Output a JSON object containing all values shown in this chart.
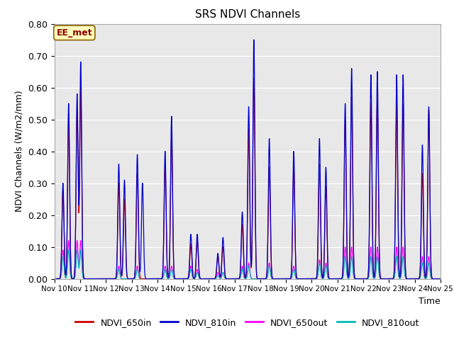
{
  "title": "SRS NDVI Channels",
  "ylabel": "NDVI Channels (W/m2/mm)",
  "xlabel": "Time",
  "ylim": [
    0.0,
    0.8
  ],
  "yticks": [
    0.0,
    0.1,
    0.2,
    0.3,
    0.4,
    0.5,
    0.6,
    0.7,
    0.8
  ],
  "annotation_text": "EE_met",
  "annotation_bg": "#FFFFBB",
  "annotation_border": "#8B6000",
  "annotation_text_color": "#8B0000",
  "colors": {
    "NDVI_650in": "#CC0000",
    "NDVI_810in": "#0000CC",
    "NDVI_650out": "#FF00FF",
    "NDVI_810out": "#00BBBB"
  },
  "x_tick_labels": [
    "Nov 10",
    "Nov 11",
    "Nov 12",
    "Nov 13",
    "Nov 14",
    "Nov 15",
    "Nov 16",
    "Nov 17",
    "Nov 18",
    "Nov 19",
    "Nov 20",
    "Nov 21",
    "Nov 22",
    "Nov 23",
    "Nov 24",
    "Nov 25"
  ],
  "background_color": "#E8E8E8",
  "grid_color": "#FFFFFF",
  "peak_data": {
    "NDVI_810in": {
      "times": [
        0.33,
        0.55,
        0.88,
        1.02,
        2.5,
        2.72,
        3.22,
        3.42,
        4.3,
        4.55,
        5.3,
        5.55,
        6.35,
        6.55,
        7.3,
        7.55,
        7.75,
        8.35,
        9.3,
        10.3,
        10.55,
        11.3,
        11.55,
        12.3,
        12.55,
        13.3,
        13.55,
        14.3,
        14.55
      ],
      "heights": [
        0.3,
        0.55,
        0.58,
        0.68,
        0.36,
        0.31,
        0.39,
        0.3,
        0.4,
        0.51,
        0.14,
        0.14,
        0.08,
        0.13,
        0.21,
        0.54,
        0.75,
        0.44,
        0.4,
        0.44,
        0.35,
        0.55,
        0.66,
        0.64,
        0.65,
        0.64,
        0.64,
        0.42,
        0.54
      ]
    },
    "NDVI_650in": {
      "times": [
        0.33,
        0.55,
        0.88,
        1.02,
        2.5,
        2.72,
        3.22,
        4.3,
        4.55,
        5.3,
        5.55,
        6.35,
        6.55,
        7.3,
        7.55,
        7.75,
        8.35,
        9.3,
        10.3,
        10.55,
        11.3,
        11.55,
        12.3,
        12.55,
        13.3,
        13.55,
        14.3,
        14.55
      ],
      "heights": [
        0.28,
        0.5,
        0.53,
        0.6,
        0.3,
        0.25,
        0.33,
        0.36,
        0.45,
        0.11,
        0.12,
        0.07,
        0.1,
        0.17,
        0.47,
        0.63,
        0.35,
        0.35,
        0.36,
        0.29,
        0.5,
        0.57,
        0.55,
        0.56,
        0.55,
        0.55,
        0.33,
        0.53
      ]
    },
    "NDVI_650out": {
      "times": [
        0.33,
        0.55,
        0.88,
        1.02,
        2.5,
        3.22,
        4.3,
        4.55,
        5.3,
        5.55,
        6.35,
        6.55,
        7.3,
        7.55,
        8.35,
        9.3,
        10.3,
        10.55,
        11.3,
        11.55,
        12.3,
        12.55,
        13.3,
        13.55,
        14.3,
        14.55
      ],
      "heights": [
        0.09,
        0.12,
        0.12,
        0.12,
        0.04,
        0.04,
        0.04,
        0.04,
        0.04,
        0.03,
        0.02,
        0.02,
        0.04,
        0.05,
        0.05,
        0.04,
        0.06,
        0.05,
        0.1,
        0.1,
        0.1,
        0.1,
        0.1,
        0.1,
        0.07,
        0.07
      ]
    },
    "NDVI_810out": {
      "times": [
        0.33,
        0.55,
        0.88,
        1.02,
        2.5,
        3.22,
        4.3,
        4.55,
        5.3,
        5.55,
        6.35,
        6.55,
        7.3,
        7.55,
        8.35,
        9.3,
        10.3,
        10.55,
        11.3,
        11.55,
        12.3,
        12.55,
        13.3,
        13.55,
        14.3,
        14.55
      ],
      "heights": [
        0.07,
        0.09,
        0.09,
        0.09,
        0.03,
        0.03,
        0.03,
        0.03,
        0.03,
        0.02,
        0.01,
        0.02,
        0.03,
        0.04,
        0.04,
        0.03,
        0.05,
        0.04,
        0.07,
        0.07,
        0.07,
        0.07,
        0.07,
        0.07,
        0.05,
        0.05
      ]
    }
  }
}
